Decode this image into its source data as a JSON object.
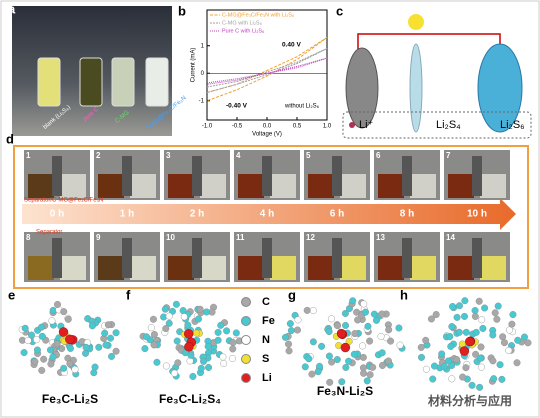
{
  "panels": {
    "a": "a",
    "b": "b",
    "c": "c",
    "d": "d",
    "e": "e",
    "f": "f",
    "g": "g",
    "h": "h"
  },
  "panel_a": {
    "vials": [
      "blank (Li₂S₆)",
      "pure C",
      "C-MG",
      "C-MG@Fe₃C/Fe₃N"
    ]
  },
  "chart_data": {
    "type": "line",
    "x_label": "Voltage (V)",
    "y_label": "Current (mA)",
    "x": [
      -1.0,
      -0.5,
      0.0,
      0.5,
      1.0,
      0.5,
      0.0,
      -0.5,
      -1.0
    ],
    "series": [
      {
        "name": "C-MG@Fe₃C/Fe₃N with Li₂S₆",
        "color": "#f0a030",
        "values": [
          -0.7,
          -0.4,
          0.1,
          0.6,
          1.3,
          0.5,
          -0.1,
          -0.6,
          -1.0
        ]
      },
      {
        "name": "C-MG with Li₂S₆",
        "color": "#a0a0a0",
        "values": [
          -0.5,
          -0.3,
          0.05,
          0.4,
          0.9,
          0.35,
          -0.05,
          -0.4,
          -0.7
        ]
      },
      {
        "name": "Pure C with Li₂S₆",
        "color": "#c040c0",
        "values": [
          -0.35,
          -0.2,
          0.0,
          0.2,
          0.55,
          0.25,
          0.0,
          -0.25,
          -0.4
        ]
      }
    ],
    "xlim": [
      -1.0,
      1.0
    ],
    "ylim": [
      -1.7,
      2.3
    ],
    "xticks": [
      {
        "value": -1.0,
        "label": "-1.0"
      },
      -0.5,
      {
        "value": 0.0,
        "label": "0.0"
      },
      0.5,
      {
        "value": 1.0,
        "label": "1.0"
      }
    ],
    "yticks": [
      -1,
      0,
      1
    ],
    "annotations": [
      "0.40 V",
      "-0.40 V",
      "without Li₂S₆"
    ]
  },
  "panel_c": {
    "legend": [
      "Li⁺",
      "Li₂S₄",
      "Li₂S₆"
    ]
  },
  "panel_d": {
    "numbers": [
      "1",
      "2",
      "3",
      "4",
      "5",
      "6",
      "7",
      "8",
      "9",
      "10",
      "11",
      "12",
      "13",
      "14"
    ],
    "times": [
      "0 h",
      "1 h",
      "2 h",
      "4 h",
      "6 h",
      "8 h",
      "10 h"
    ],
    "label_top": "Separator/C-MG@Fe₃C/Fe₃N",
    "label_bottom": "Separator"
  },
  "atoms": [
    "C",
    "Fe",
    "N",
    "S",
    "Li"
  ],
  "captions": [
    "Fe₃C-Li₂S",
    "Fe₃C-Li₂S₄",
    "Fe₃N-Li₂S"
  ],
  "watermark": "材料分析与应用"
}
